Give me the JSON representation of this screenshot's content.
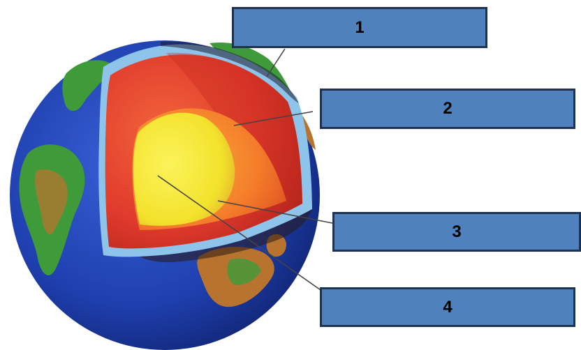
{
  "labels": [
    {
      "id": "1",
      "text": "1"
    },
    {
      "id": "2",
      "text": "2"
    },
    {
      "id": "3",
      "text": "3"
    },
    {
      "id": "4",
      "text": "4"
    }
  ],
  "colors": {
    "label_fill": "#4f81bd",
    "label_border": "#1f3350",
    "ocean": "#1e3fae",
    "land_green": "#3f9b3a",
    "land_brown": "#b8742f",
    "crust_outline": "#8fc4ea",
    "mantle": "#e03a2c",
    "outer_core": "#f57c2a",
    "inner_core": "#f3e22c",
    "leader_line": "#333333"
  }
}
